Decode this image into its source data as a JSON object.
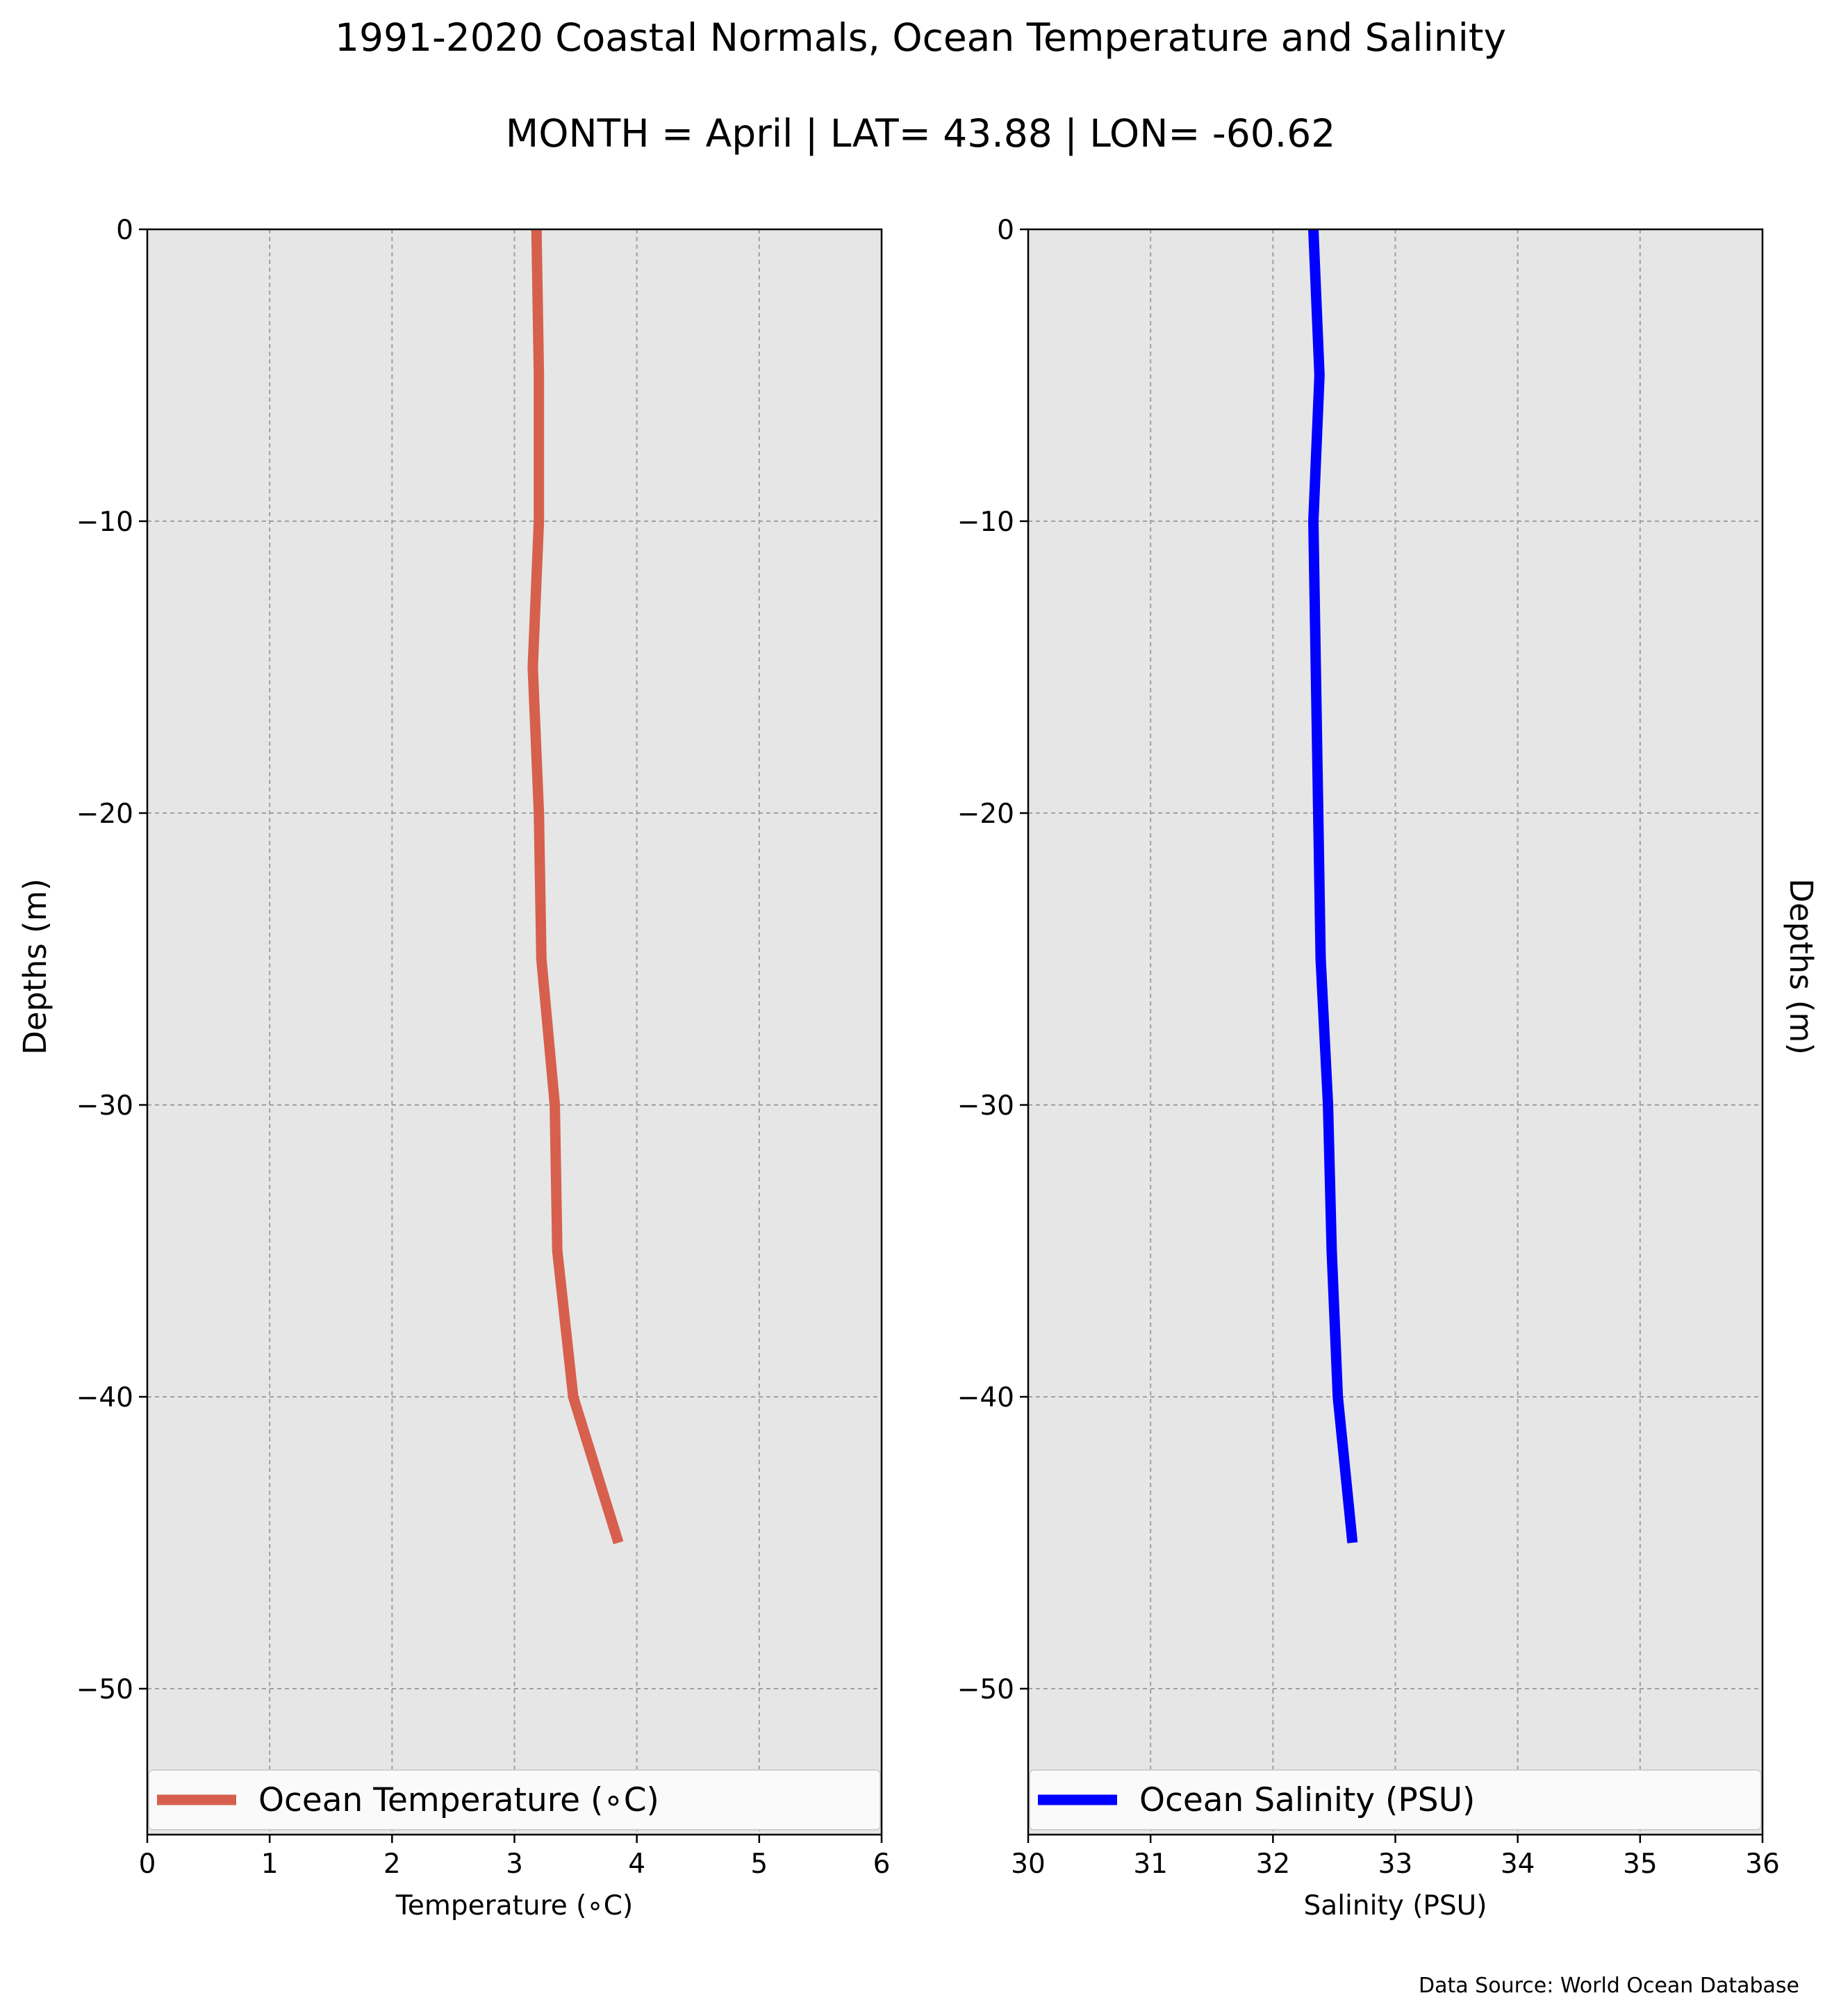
{
  "title": "1991-2020 Coastal Normals, Ocean Temperature and Salinity",
  "subtitle": "MONTH = April | LAT= 43.88 | LON= -60.62",
  "source": "Data Source: World Ocean Database",
  "colors": {
    "panel_bg": "#e6e6e6",
    "temperature": "#d6604d",
    "salinity": "#0000ff"
  },
  "chart_data": [
    {
      "type": "line",
      "xlabel": "Temperature (∘C)",
      "ylabel": "Depths (m)",
      "xlim": [
        0,
        6
      ],
      "ylim": [
        -55,
        0
      ],
      "xticks": [
        0,
        1,
        2,
        3,
        4,
        5,
        6
      ],
      "yticks": [
        0,
        -10,
        -20,
        -30,
        -40,
        -50
      ],
      "grid": true,
      "legend_position": "bottom",
      "series": [
        {
          "name": "Ocean Temperature (∘C)",
          "color": "#d6604d",
          "x": [
            3.18,
            3.2,
            3.2,
            3.15,
            3.2,
            3.22,
            3.33,
            3.35,
            3.48,
            3.85
          ],
          "y": [
            0,
            -5,
            -10,
            -15,
            -20,
            -25,
            -30,
            -35,
            -40,
            -45
          ]
        }
      ]
    },
    {
      "type": "line",
      "xlabel": "Salinity (PSU)",
      "ylabel": "Depths (m)",
      "xlim": [
        30,
        36
      ],
      "ylim": [
        -55,
        0
      ],
      "xticks": [
        30,
        31,
        32,
        33,
        34,
        35,
        36
      ],
      "yticks": [
        0,
        -10,
        -20,
        -30,
        -40,
        -50
      ],
      "grid": true,
      "legend_position": "bottom",
      "series": [
        {
          "name": "Ocean Salinity (PSU)",
          "color": "#0000ff",
          "x": [
            32.33,
            32.38,
            32.33,
            32.35,
            32.37,
            32.39,
            32.45,
            32.48,
            32.53,
            32.65
          ],
          "y": [
            0,
            -5,
            -10,
            -15,
            -20,
            -25,
            -30,
            -35,
            -40,
            -45
          ]
        }
      ]
    }
  ]
}
